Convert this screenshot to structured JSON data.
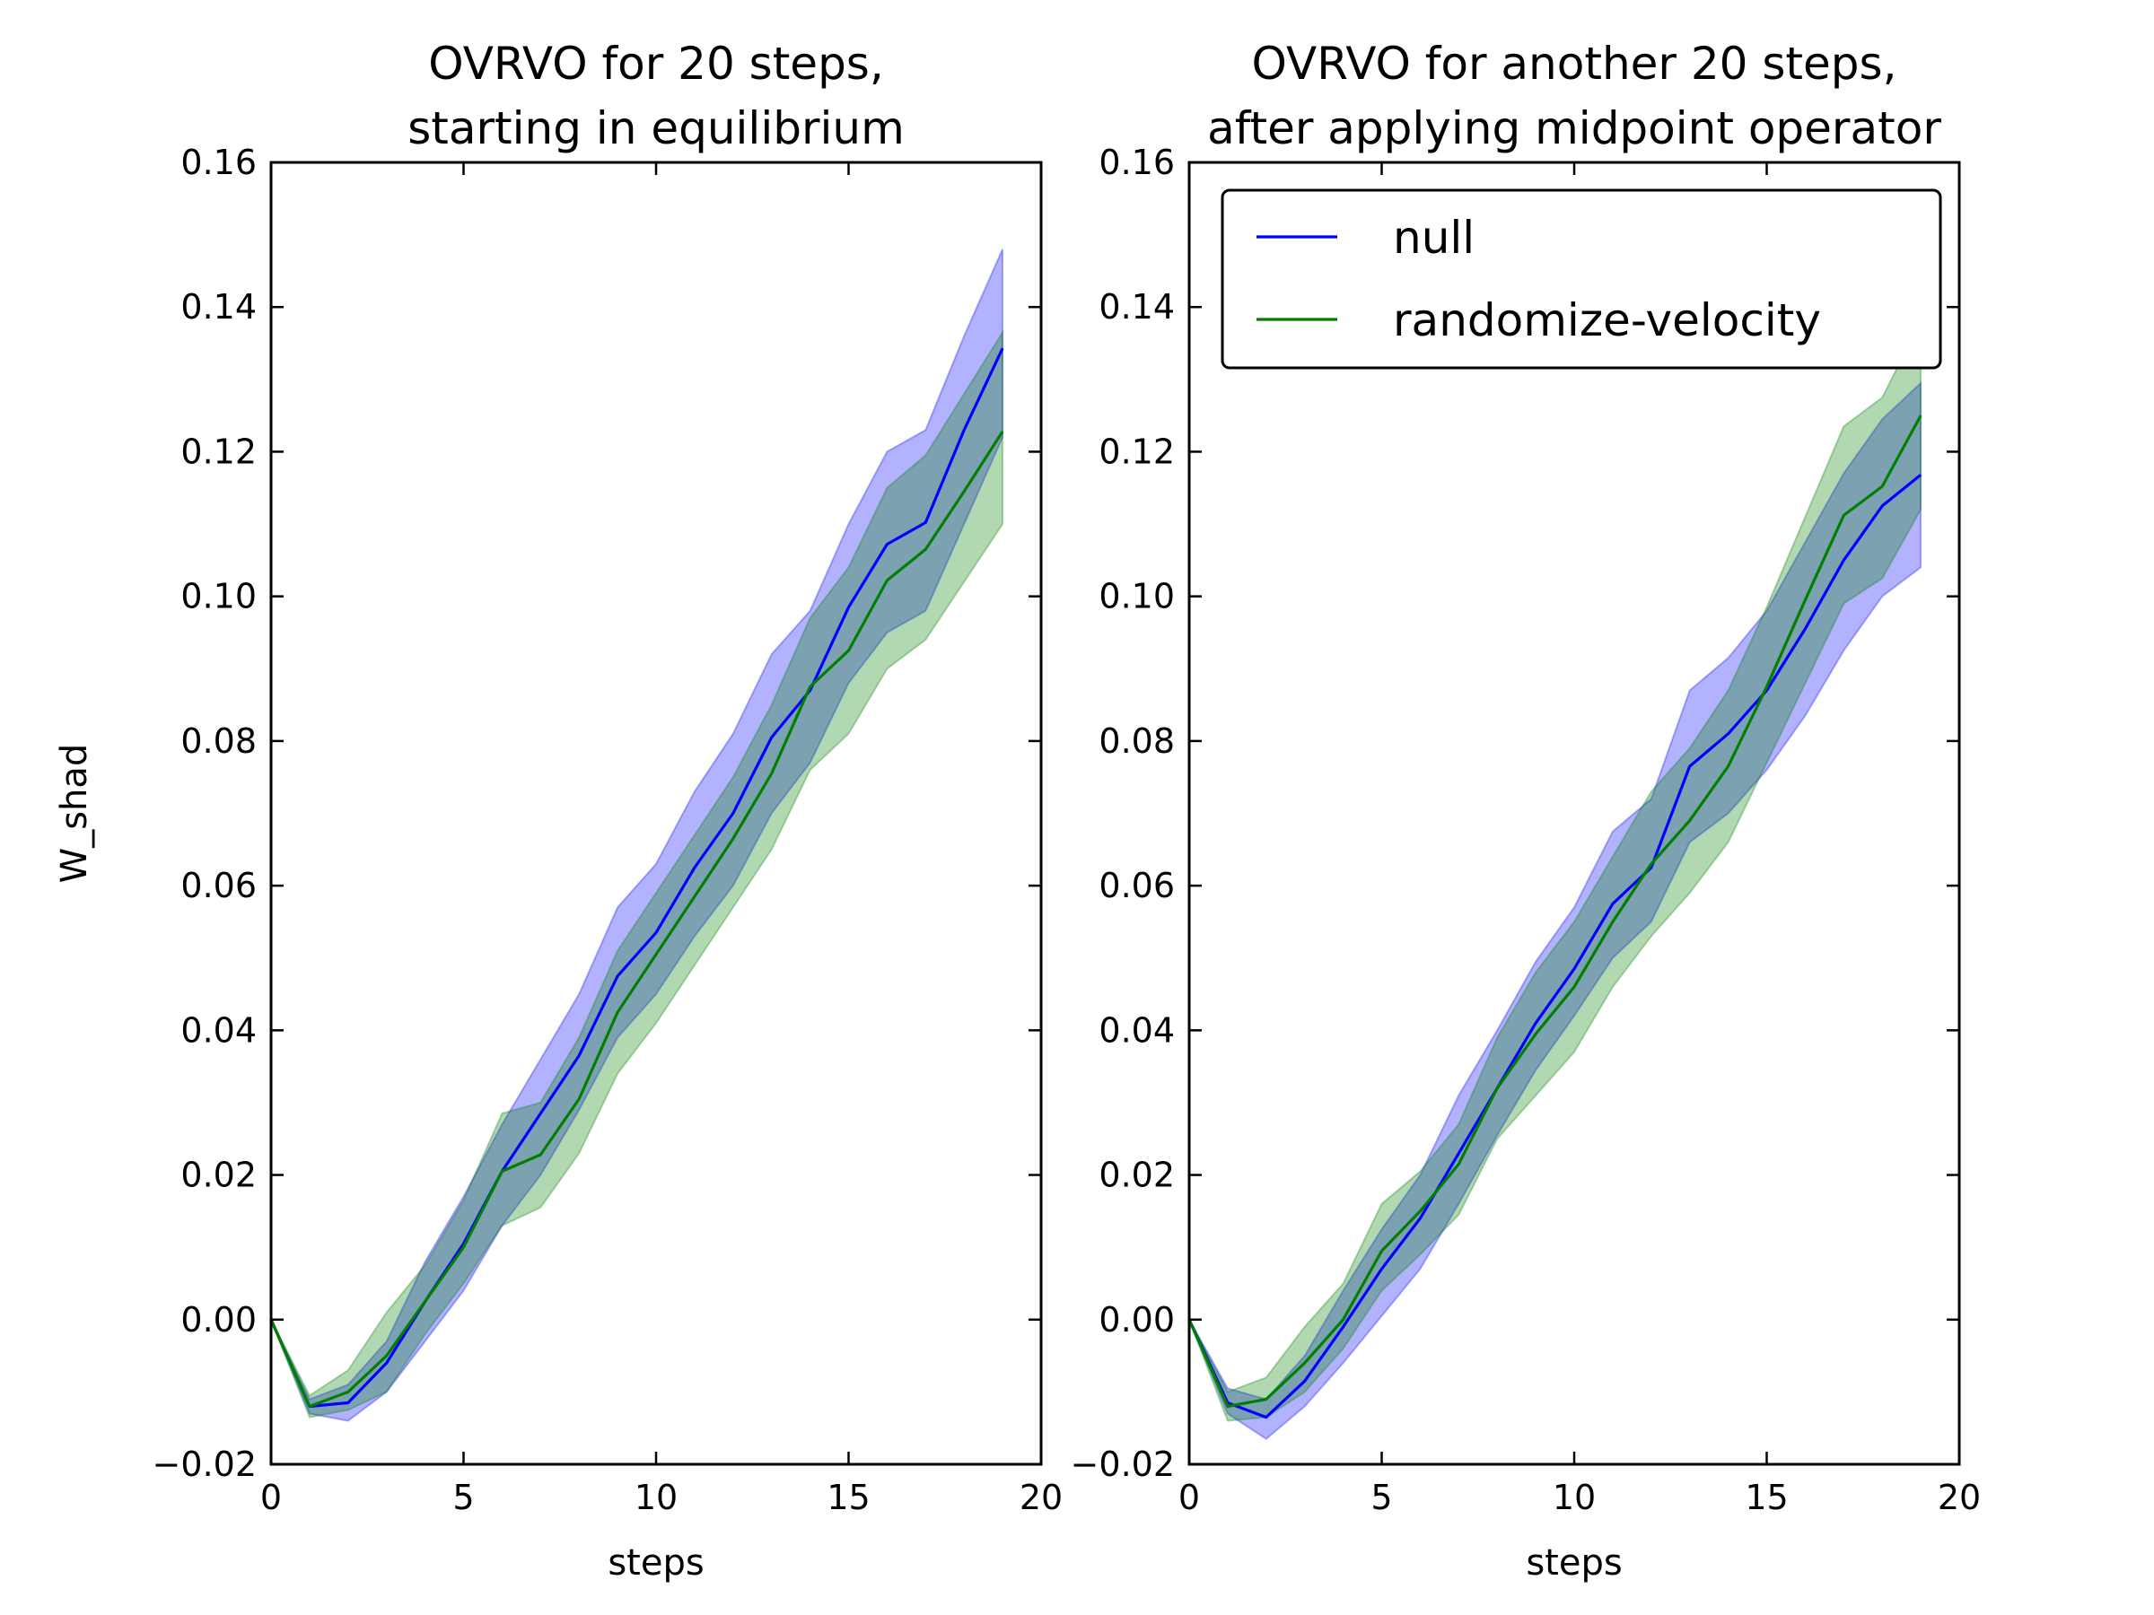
{
  "chart_data": [
    {
      "type": "line",
      "title": "OVRVO for 20 steps,\nstarting in equilibrium",
      "xlabel": "steps",
      "ylabel": "W_shad",
      "xlim": [
        0,
        20
      ],
      "ylim": [
        -0.02,
        0.16
      ],
      "xticks": [
        "0",
        "5",
        "10",
        "15",
        "20"
      ],
      "yticks": [
        "−0.02",
        "0.00",
        "0.02",
        "0.04",
        "0.06",
        "0.08",
        "0.10",
        "0.12",
        "0.14",
        "0.16"
      ],
      "legend": null,
      "x": [
        0,
        1,
        2,
        3,
        4,
        5,
        6,
        7,
        8,
        9,
        10,
        11,
        12,
        13,
        14,
        15,
        16,
        17,
        18,
        19
      ],
      "series": [
        {
          "name": "null",
          "color": "#0000ff",
          "values": [
            0.0,
            -0.012,
            -0.0115,
            -0.006,
            0.0025,
            0.0105,
            0.0205,
            0.0285,
            0.0365,
            0.0475,
            0.0535,
            0.0625,
            0.07,
            0.0805,
            0.087,
            0.0985,
            0.1072,
            0.1102,
            0.123,
            0.1343
          ],
          "lower": [
            0.0,
            -0.013,
            -0.014,
            -0.01,
            -0.003,
            0.004,
            0.013,
            0.02,
            0.029,
            0.039,
            0.045,
            0.053,
            0.06,
            0.07,
            0.077,
            0.088,
            0.095,
            0.098,
            0.11,
            0.122
          ],
          "upper": [
            0.0,
            -0.011,
            -0.009,
            -0.003,
            0.008,
            0.017,
            0.027,
            0.036,
            0.045,
            0.057,
            0.063,
            0.073,
            0.081,
            0.092,
            0.098,
            0.11,
            0.12,
            0.123,
            0.136,
            0.148
          ]
        },
        {
          "name": "randomize-velocity",
          "color": "#007f00",
          "values": [
            0.0,
            -0.012,
            -0.01,
            -0.005,
            0.0025,
            0.01,
            0.0205,
            0.0228,
            0.0305,
            0.0425,
            0.0505,
            0.0585,
            0.0665,
            0.0755,
            0.0875,
            0.0925,
            0.1022,
            0.1065,
            0.1145,
            0.1228
          ],
          "lower": [
            0.0,
            -0.0135,
            -0.0125,
            -0.01,
            -0.002,
            0.005,
            0.013,
            0.0155,
            0.023,
            0.034,
            0.041,
            0.049,
            0.057,
            0.065,
            0.076,
            0.081,
            0.09,
            0.094,
            0.102,
            0.11
          ],
          "upper": [
            0.0,
            -0.0105,
            -0.007,
            0.001,
            0.0075,
            0.0165,
            0.0285,
            0.03,
            0.039,
            0.051,
            0.059,
            0.067,
            0.075,
            0.085,
            0.097,
            0.104,
            0.115,
            0.1195,
            0.128,
            0.1365
          ]
        }
      ]
    },
    {
      "type": "line",
      "title": "OVRVO for another 20 steps,\nafter applying midpoint operator",
      "xlabel": "steps",
      "ylabel": "",
      "xlim": [
        0,
        20
      ],
      "ylim": [
        -0.02,
        0.16
      ],
      "xticks": [
        "0",
        "5",
        "10",
        "15",
        "20"
      ],
      "yticks": [
        "−0.02",
        "0.00",
        "0.02",
        "0.04",
        "0.06",
        "0.08",
        "0.10",
        "0.12",
        "0.14",
        "0.16"
      ],
      "legend": "top-left",
      "x": [
        0,
        1,
        2,
        3,
        4,
        5,
        6,
        7,
        8,
        9,
        10,
        11,
        12,
        13,
        14,
        15,
        16,
        17,
        18,
        19
      ],
      "series": [
        {
          "name": "null",
          "color": "#0000ff",
          "values": [
            0.0,
            -0.0115,
            -0.0135,
            -0.0085,
            -0.001,
            0.007,
            0.014,
            0.023,
            0.032,
            0.041,
            0.0485,
            0.0575,
            0.0625,
            0.0765,
            0.081,
            0.087,
            0.0955,
            0.105,
            0.1125,
            0.1168
          ],
          "lower": [
            0.0,
            -0.013,
            -0.0165,
            -0.012,
            -0.006,
            0.0005,
            0.007,
            0.016,
            0.0255,
            0.0345,
            0.042,
            0.05,
            0.055,
            0.066,
            0.07,
            0.076,
            0.0835,
            0.0925,
            0.1,
            0.104
          ],
          "upper": [
            0.0,
            -0.0095,
            -0.011,
            -0.005,
            0.004,
            0.0125,
            0.02,
            0.031,
            0.04,
            0.0495,
            0.057,
            0.0675,
            0.072,
            0.087,
            0.0915,
            0.098,
            0.1075,
            0.117,
            0.1245,
            0.1295
          ]
        },
        {
          "name": "randomize-velocity",
          "color": "#007f00",
          "values": [
            0.0,
            -0.012,
            -0.011,
            -0.006,
            0.0,
            0.0095,
            0.015,
            0.0215,
            0.032,
            0.0395,
            0.046,
            0.055,
            0.063,
            0.069,
            0.0765,
            0.0875,
            0.0995,
            0.1112,
            0.1152,
            0.125
          ],
          "lower": [
            0.0,
            -0.014,
            -0.0135,
            -0.01,
            -0.004,
            0.004,
            0.009,
            0.0145,
            0.025,
            0.031,
            0.037,
            0.046,
            0.053,
            0.059,
            0.066,
            0.077,
            0.088,
            0.099,
            0.1025,
            0.112
          ],
          "upper": [
            0.0,
            -0.01,
            -0.008,
            -0.001,
            0.005,
            0.016,
            0.0205,
            0.027,
            0.039,
            0.048,
            0.055,
            0.064,
            0.073,
            0.079,
            0.087,
            0.0985,
            0.111,
            0.1235,
            0.1275,
            0.138
          ]
        }
      ]
    }
  ]
}
